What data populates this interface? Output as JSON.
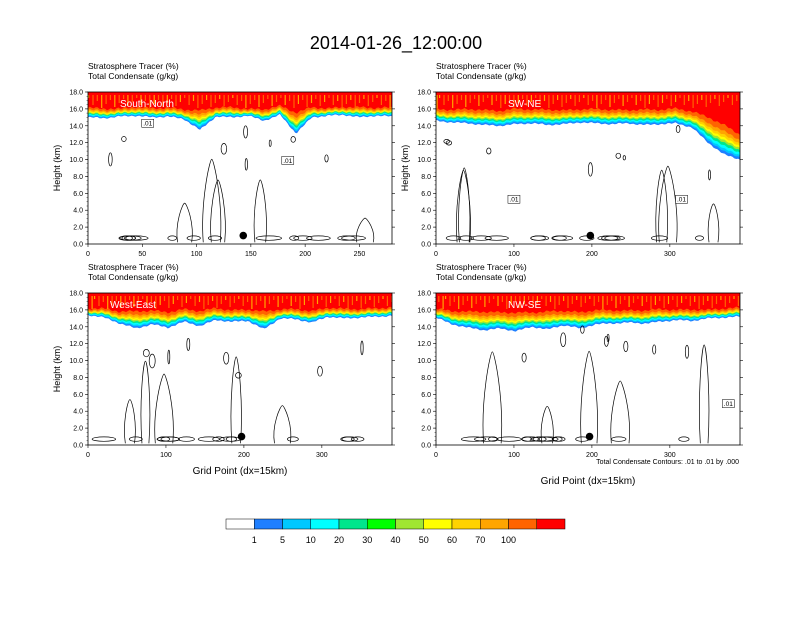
{
  "title": "2014-01-26_12:00:00",
  "footnote": "Total Condensate Contours: .01 to .01 by .000",
  "colors": {
    "levels": [
      "#ffffff",
      "#1f7fff",
      "#00c8ff",
      "#00ffff",
      "#00e68c",
      "#00ff00",
      "#a0e632",
      "#ffff00",
      "#ffd200",
      "#ffa500",
      "#ff6400",
      "#ff0000"
    ],
    "contour": "#000000",
    "marker": "#000000"
  },
  "chart_data": [
    {
      "type": "heatmap",
      "panel": "South-North",
      "header1": "Stratosphere Tracer   (%)",
      "header2": "Total Condensate   (g/kg)",
      "ylabel": "Height (km)",
      "xlabel": "",
      "xlim": [
        0,
        280
      ],
      "xticks": [
        0,
        50,
        100,
        150,
        200,
        250
      ],
      "ylim": [
        0,
        18
      ],
      "yticks": [
        0.0,
        2.0,
        4.0,
        6.0,
        8.0,
        10.0,
        12.0,
        14.0,
        16.0,
        18.0
      ],
      "tracer_top_km": [
        16.6,
        16.5,
        16.4,
        16.7,
        16.5,
        16.6,
        16.4,
        16.8,
        16.6,
        16.7,
        16.3,
        16.5,
        16.8,
        16.6,
        16.7,
        16.4,
        16.6,
        16.7,
        16.5,
        16.6
      ],
      "tracer_base_km": [
        15.0,
        14.9,
        15.1,
        15.2,
        15.0,
        15.1,
        14.8,
        13.5,
        15.1,
        15.0,
        15.2,
        14.6,
        15.3,
        13.1,
        15.0,
        15.2,
        15.3,
        15.0,
        15.2,
        15.1
      ],
      "contour_labels": [
        {
          "text": ".01",
          "x": 55,
          "y": 14.3
        },
        {
          "text": ".01",
          "x": 184,
          "y": 9.9
        }
      ],
      "marker": {
        "x": 143,
        "y": 1.0
      }
    },
    {
      "type": "heatmap",
      "panel": "SW-NE",
      "header1": "Stratosphere Tracer   (%)",
      "header2": "Total Condensate   (g/kg)",
      "ylabel": "Height (km)",
      "xlabel": "",
      "xlim": [
        0,
        390
      ],
      "xticks": [
        0,
        100,
        200,
        300
      ],
      "ylim": [
        0,
        18
      ],
      "yticks": [
        0.0,
        2.0,
        4.0,
        6.0,
        8.0,
        10.0,
        12.0,
        14.0,
        16.0,
        18.0
      ],
      "tracer_top_km": [
        16.6,
        16.5,
        16.7,
        16.6,
        16.5,
        16.8,
        16.6,
        16.7,
        16.5,
        16.6,
        16.7,
        16.6,
        16.5,
        16.7,
        16.6,
        16.8,
        16.5,
        16.3,
        15.6,
        14.2
      ],
      "tracer_base_km": [
        14.6,
        14.4,
        14.3,
        14.1,
        14.0,
        14.2,
        14.3,
        14.1,
        14.2,
        14.4,
        14.3,
        14.2,
        14.3,
        14.1,
        14.2,
        14.3,
        13.8,
        12.0,
        10.6,
        10.0
      ],
      "contour_labels": [
        {
          "text": ".01",
          "x": 100,
          "y": 5.3
        },
        {
          "text": ".01",
          "x": 315,
          "y": 5.3
        }
      ],
      "marker": {
        "x": 198,
        "y": 1.0
      }
    },
    {
      "type": "heatmap",
      "panel": "West-East",
      "header1": "Stratosphere Tracer   (%)",
      "header2": "Total Condensate   (g/kg)",
      "ylabel": "Height (km)",
      "xlabel": "Grid Point (dx=15km)",
      "xlim": [
        0,
        390
      ],
      "xticks": [
        0,
        100,
        200,
        300
      ],
      "ylim": [
        0,
        18
      ],
      "yticks": [
        0.0,
        2.0,
        4.0,
        6.0,
        8.0,
        10.0,
        12.0,
        14.0,
        16.0,
        18.0
      ],
      "tracer_top_km": [
        16.5,
        16.6,
        16.4,
        16.7,
        16.6,
        16.5,
        16.7,
        16.6,
        16.8,
        16.5,
        16.6,
        16.7,
        16.5,
        16.6,
        16.4,
        16.7,
        16.6,
        16.5,
        16.6,
        16.7
      ],
      "tracer_base_km": [
        15.4,
        15.1,
        14.4,
        13.8,
        14.3,
        13.9,
        14.6,
        14.1,
        14.8,
        14.6,
        14.7,
        13.7,
        15.0,
        14.9,
        14.5,
        15.2,
        15.0,
        15.1,
        15.2,
        15.3
      ],
      "contour_labels": [],
      "marker": {
        "x": 197,
        "y": 1.0
      }
    },
    {
      "type": "heatmap",
      "panel": "NW-SE",
      "header1": "Stratosphere Tracer   (%)",
      "header2": "Total Condensate   (g/kg)",
      "ylabel": "",
      "xlabel": "Grid Point (dx=15km)",
      "xlim": [
        0,
        390
      ],
      "xticks": [
        0,
        100,
        200,
        300
      ],
      "ylim": [
        0,
        18
      ],
      "yticks": [
        0.0,
        2.0,
        4.0,
        6.0,
        8.0,
        10.0,
        12.0,
        14.0,
        16.0,
        18.0
      ],
      "tracer_top_km": [
        16.6,
        16.5,
        16.6,
        16.7,
        16.5,
        16.6,
        16.4,
        16.7,
        16.6,
        16.5,
        16.7,
        16.6,
        16.5,
        16.6,
        16.7,
        16.5,
        16.6,
        16.4,
        16.6,
        16.7
      ],
      "tracer_base_km": [
        15.1,
        14.3,
        13.9,
        13.6,
        13.8,
        13.5,
        14.0,
        13.7,
        14.2,
        13.8,
        14.3,
        14.4,
        14.5,
        14.4,
        14.6,
        14.8,
        14.7,
        15.0,
        15.1,
        15.2
      ],
      "contour_labels": [
        {
          "text": ".01",
          "x": 375,
          "y": 4.9
        }
      ],
      "marker": {
        "x": 197,
        "y": 1.0
      }
    }
  ],
  "colorbar": {
    "labels": [
      "1",
      "5",
      "10",
      "20",
      "30",
      "40",
      "50",
      "60",
      "70",
      "100"
    ]
  }
}
